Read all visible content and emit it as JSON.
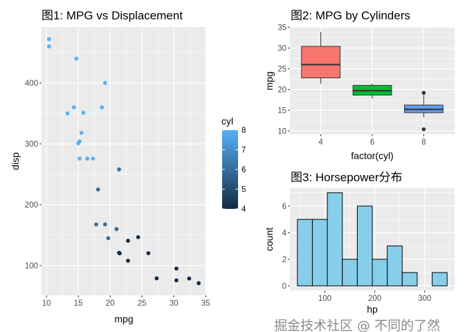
{
  "chart_data": [
    {
      "type": "scatter",
      "title": "图1: MPG vs Displacement",
      "xlabel": "mpg",
      "ylabel": "disp",
      "xlim": [
        9.225,
        35.075
      ],
      "ylim": [
        51.1,
        492
      ],
      "xticks": [
        10,
        15,
        20,
        25,
        30,
        35
      ],
      "yticks": [
        100,
        200,
        300,
        400
      ],
      "grid": true,
      "legend": {
        "title": "cyl",
        "placement": "right",
        "type": "colorbar",
        "ticks": [
          4,
          5,
          6,
          7,
          8
        ],
        "low_color": "#132B43",
        "high_color": "#56B1F7"
      },
      "points": [
        {
          "x": 21.0,
          "y": 160,
          "cyl": 6
        },
        {
          "x": 21.0,
          "y": 160,
          "cyl": 6
        },
        {
          "x": 22.8,
          "y": 108,
          "cyl": 4
        },
        {
          "x": 21.4,
          "y": 258,
          "cyl": 6
        },
        {
          "x": 18.7,
          "y": 360,
          "cyl": 8
        },
        {
          "x": 18.1,
          "y": 225,
          "cyl": 6
        },
        {
          "x": 14.3,
          "y": 360,
          "cyl": 8
        },
        {
          "x": 24.4,
          "y": 146.7,
          "cyl": 4
        },
        {
          "x": 22.8,
          "y": 140.8,
          "cyl": 4
        },
        {
          "x": 19.2,
          "y": 167.6,
          "cyl": 6
        },
        {
          "x": 17.8,
          "y": 167.6,
          "cyl": 6
        },
        {
          "x": 16.4,
          "y": 275.8,
          "cyl": 8
        },
        {
          "x": 17.3,
          "y": 275.8,
          "cyl": 8
        },
        {
          "x": 15.2,
          "y": 275.8,
          "cyl": 8
        },
        {
          "x": 10.4,
          "y": 472,
          "cyl": 8
        },
        {
          "x": 10.4,
          "y": 460,
          "cyl": 8
        },
        {
          "x": 14.7,
          "y": 440,
          "cyl": 8
        },
        {
          "x": 32.4,
          "y": 78.7,
          "cyl": 4
        },
        {
          "x": 30.4,
          "y": 75.7,
          "cyl": 4
        },
        {
          "x": 33.9,
          "y": 71.1,
          "cyl": 4
        },
        {
          "x": 21.5,
          "y": 120.1,
          "cyl": 4
        },
        {
          "x": 15.5,
          "y": 318,
          "cyl": 8
        },
        {
          "x": 15.2,
          "y": 304,
          "cyl": 8
        },
        {
          "x": 13.3,
          "y": 350,
          "cyl": 8
        },
        {
          "x": 19.2,
          "y": 400,
          "cyl": 8
        },
        {
          "x": 27.3,
          "y": 79,
          "cyl": 4
        },
        {
          "x": 26.0,
          "y": 120.3,
          "cyl": 4
        },
        {
          "x": 30.4,
          "y": 95.1,
          "cyl": 4
        },
        {
          "x": 15.8,
          "y": 351,
          "cyl": 8
        },
        {
          "x": 19.7,
          "y": 145,
          "cyl": 6
        },
        {
          "x": 15.0,
          "y": 301,
          "cyl": 8
        },
        {
          "x": 21.4,
          "y": 121,
          "cyl": 4
        }
      ]
    },
    {
      "type": "box",
      "title": "图2: MPG by Cylinders",
      "xlabel": "factor(cyl)",
      "ylabel": "mpg",
      "ylim": [
        9.225,
        35.075
      ],
      "yticks": [
        10,
        15,
        20,
        25,
        30,
        35
      ],
      "grid": true,
      "categories": [
        "4",
        "6",
        "8"
      ],
      "boxes": [
        {
          "category": "4",
          "min": 21.4,
          "q1": 22.8,
          "median": 26.0,
          "q3": 30.4,
          "max": 33.9,
          "outliers": [],
          "color": "#F8766D"
        },
        {
          "category": "6",
          "min": 17.8,
          "q1": 18.65,
          "median": 19.7,
          "q3": 21.0,
          "max": 21.4,
          "outliers": [],
          "color": "#00BA38"
        },
        {
          "category": "8",
          "min": 13.3,
          "q1": 14.4,
          "median": 15.2,
          "q3": 16.25,
          "max": 18.7,
          "outliers": [
            10.4,
            19.2
          ],
          "color": "#619CFF"
        }
      ]
    },
    {
      "type": "histogram",
      "title": "图3: Horsepower分布",
      "xlabel": "hp",
      "ylabel": "count",
      "xlim": [
        30,
        360
      ],
      "ylim": [
        -0.35,
        7.35
      ],
      "xticks": [
        100,
        200,
        300
      ],
      "yticks": [
        0,
        2,
        4,
        6
      ],
      "grid": true,
      "fill": "#87CEEB",
      "bin_edges": [
        45,
        75,
        105,
        135,
        165,
        195,
        225,
        255,
        285,
        315,
        345
      ],
      "counts": [
        5,
        5,
        7,
        2,
        6,
        2,
        3,
        1,
        0,
        1
      ]
    }
  ],
  "watermark": "掘金技术社区 @ 不同的了然"
}
